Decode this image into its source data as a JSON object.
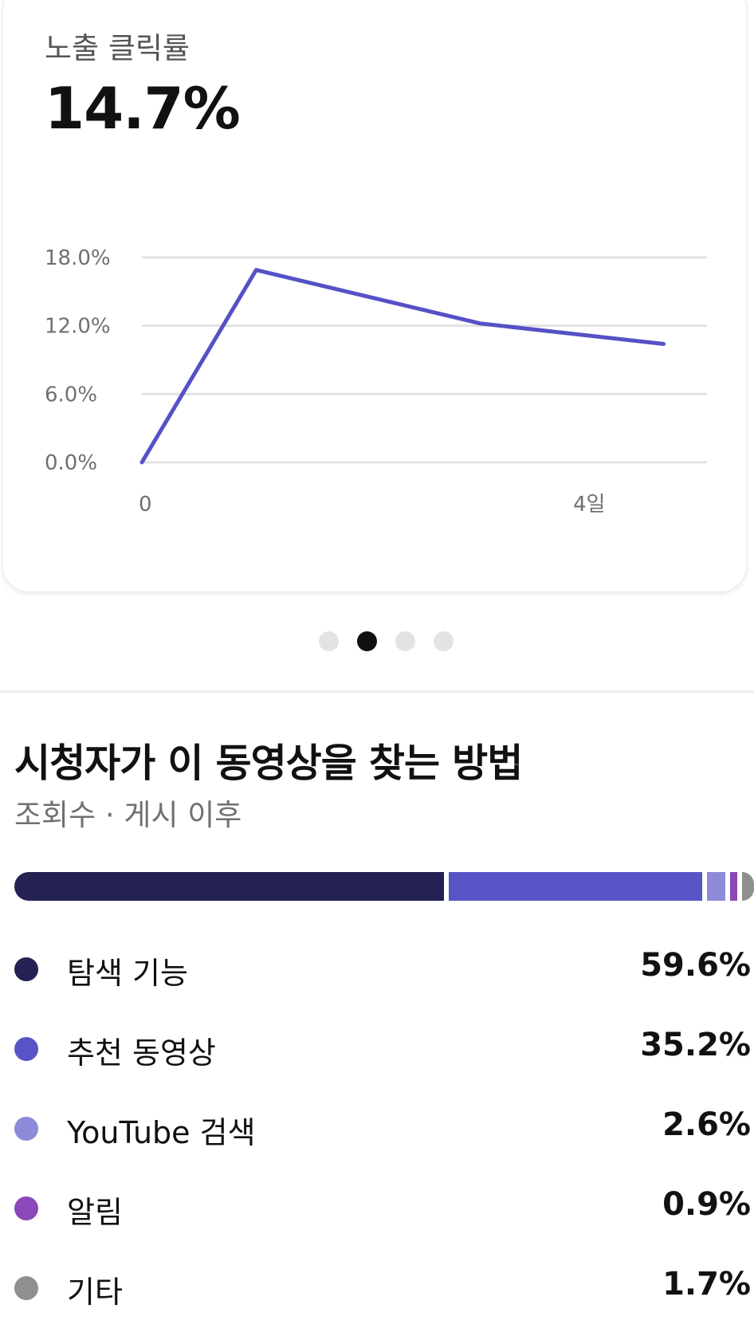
{
  "card": {
    "title": "노출 클릭률",
    "value": "14.7%",
    "chart_data": {
      "type": "line",
      "x": [
        0,
        1.06,
        3.14,
        4.84
      ],
      "x_tick_labels": [
        "0",
        "4일"
      ],
      "x_tick_values": [
        0,
        4
      ],
      "values": [
        0.0,
        16.9,
        12.2,
        10.4
      ],
      "y_tick_labels": [
        "18.0%",
        "12.0%",
        "6.0%",
        "0.0%"
      ],
      "y_tick_values": [
        18,
        12,
        6,
        0
      ],
      "ylim": [
        0,
        18
      ],
      "grid": true,
      "line_color": "#5551c6"
    }
  },
  "pagination": {
    "count": 4,
    "active_index": 1
  },
  "traffic": {
    "title": "시청자가 이 동영상을 찾는 방법",
    "subtitle": "조회수 · 게시 이후",
    "chart_data": {
      "type": "bar",
      "categories": [
        "탐색 기능",
        "추천 동영상",
        "YouTube 검색",
        "알림",
        "기타"
      ],
      "values": [
        59.6,
        35.2,
        2.6,
        0.9,
        1.7
      ],
      "colors": [
        "#232252",
        "#5754c6",
        "#8e8ad9",
        "#8a48b8",
        "#8f8f8f"
      ]
    },
    "sources": [
      {
        "label": "탐색 기능",
        "value": "59.6%",
        "color": "#232252"
      },
      {
        "label": "추천 동영상",
        "value": "35.2%",
        "color": "#5754c6"
      },
      {
        "label": "YouTube 검색",
        "value": "2.6%",
        "color": "#8e8ad9"
      },
      {
        "label": "알림",
        "value": "0.9%",
        "color": "#8a48b8"
      },
      {
        "label": "기타",
        "value": "1.7%",
        "color": "#8f8f8f"
      }
    ]
  }
}
